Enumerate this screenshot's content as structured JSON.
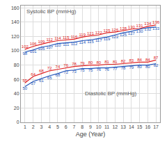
{
  "chart_data": {
    "type": "line",
    "x": [
      1,
      2,
      3,
      4,
      5,
      6,
      7,
      8,
      9,
      10,
      11,
      12,
      13,
      14,
      15,
      16,
      17
    ],
    "series": [
      {
        "color": "#e02020",
        "values": [
          102,
          106,
          109,
          112,
          114,
          115,
          116,
          119,
          121,
          122,
          125,
          126,
          128,
          130,
          131,
          134,
          136
        ]
      },
      {
        "color": "#2255bb",
        "values": [
          98,
          101,
          105,
          107,
          110,
          111,
          112,
          114,
          115,
          117,
          119,
          122,
          125,
          127,
          130,
          132,
          133
        ]
      },
      {
        "color": "#e02020",
        "values": [
          55,
          64,
          68,
          72,
          74,
          76,
          78,
          79,
          80,
          80,
          81,
          81,
          82,
          83,
          84,
          84,
          87
        ]
      },
      {
        "color": "#2255bb",
        "values": [
          50,
          57,
          61,
          65,
          68,
          72,
          73,
          75,
          75,
          76,
          76,
          77,
          78,
          79,
          80,
          80,
          82
        ]
      }
    ],
    "xlabel": "Age (Year)",
    "annotations": [
      "Systolic BP (mmHg)",
      "Diastolic BP (mmHg)"
    ],
    "xlim": [
      0.5,
      17.5
    ],
    "xticks": [
      1,
      2,
      3,
      4,
      5,
      6,
      7,
      8,
      9,
      10,
      11,
      12,
      13,
      14,
      15,
      16,
      17
    ],
    "ylim": [
      0,
      163
    ],
    "yticks": [
      0,
      20,
      40,
      60,
      80,
      100,
      120,
      140,
      160
    ],
    "grid": true,
    "data_labels": true
  }
}
